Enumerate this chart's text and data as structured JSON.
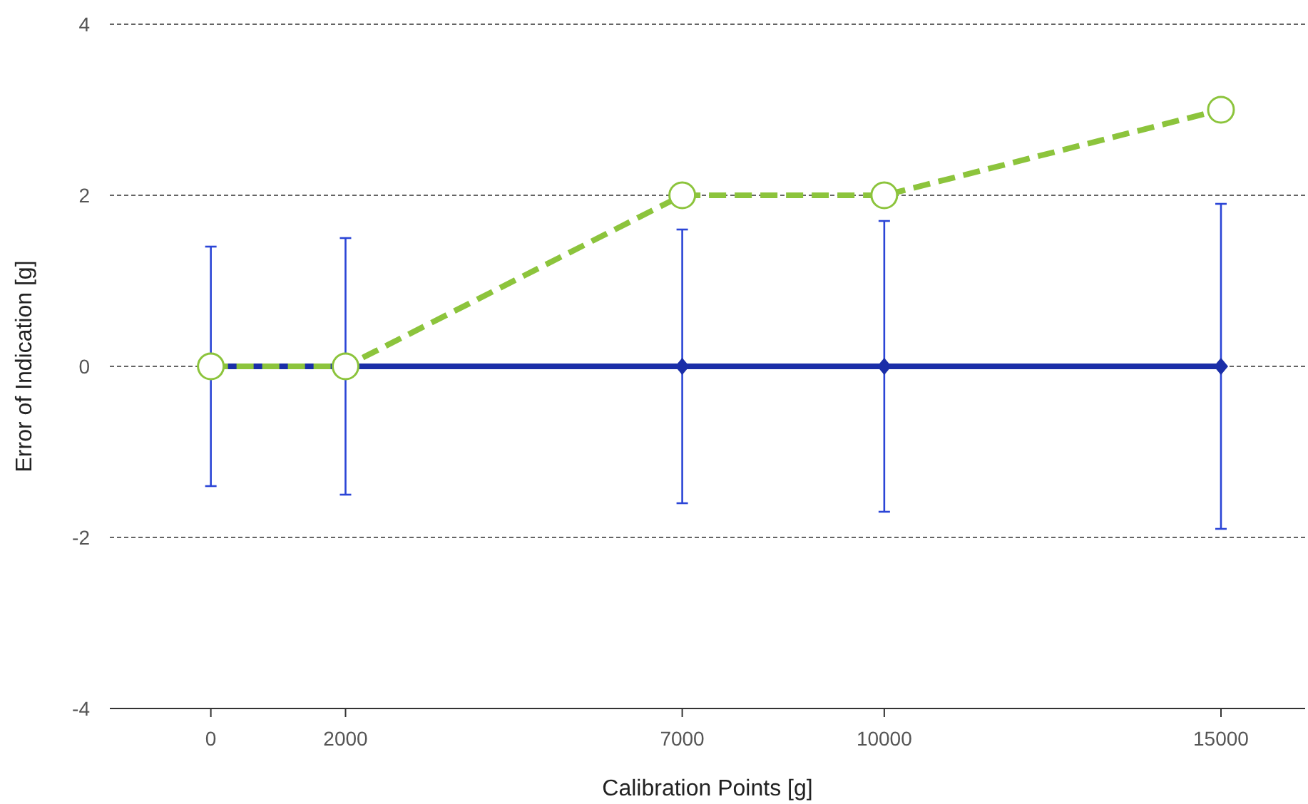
{
  "chart_data": {
    "type": "line",
    "xlabel": "Calibration Points [g]",
    "ylabel": "Error of Indication [g]",
    "x": [
      0,
      2000,
      7000,
      10000,
      15000
    ],
    "xlim": [
      -1500,
      16250
    ],
    "xticks": [
      0,
      2000,
      7000,
      10000,
      15000
    ],
    "ylim": [
      -4,
      4
    ],
    "yticks": [
      -4,
      -2,
      0,
      2,
      4
    ],
    "grid": "y",
    "series": [
      {
        "color": "#1a2ea8",
        "values": [
          0,
          0,
          0,
          0,
          0
        ],
        "errors": [
          1.4,
          1.5,
          1.6,
          1.7,
          1.9
        ],
        "marker": "diamond",
        "line_style": "solid"
      },
      {
        "color": "#8cc43c",
        "values": [
          0,
          0,
          2,
          2,
          3
        ],
        "marker": "circle",
        "line_style": "dashed"
      }
    ]
  }
}
